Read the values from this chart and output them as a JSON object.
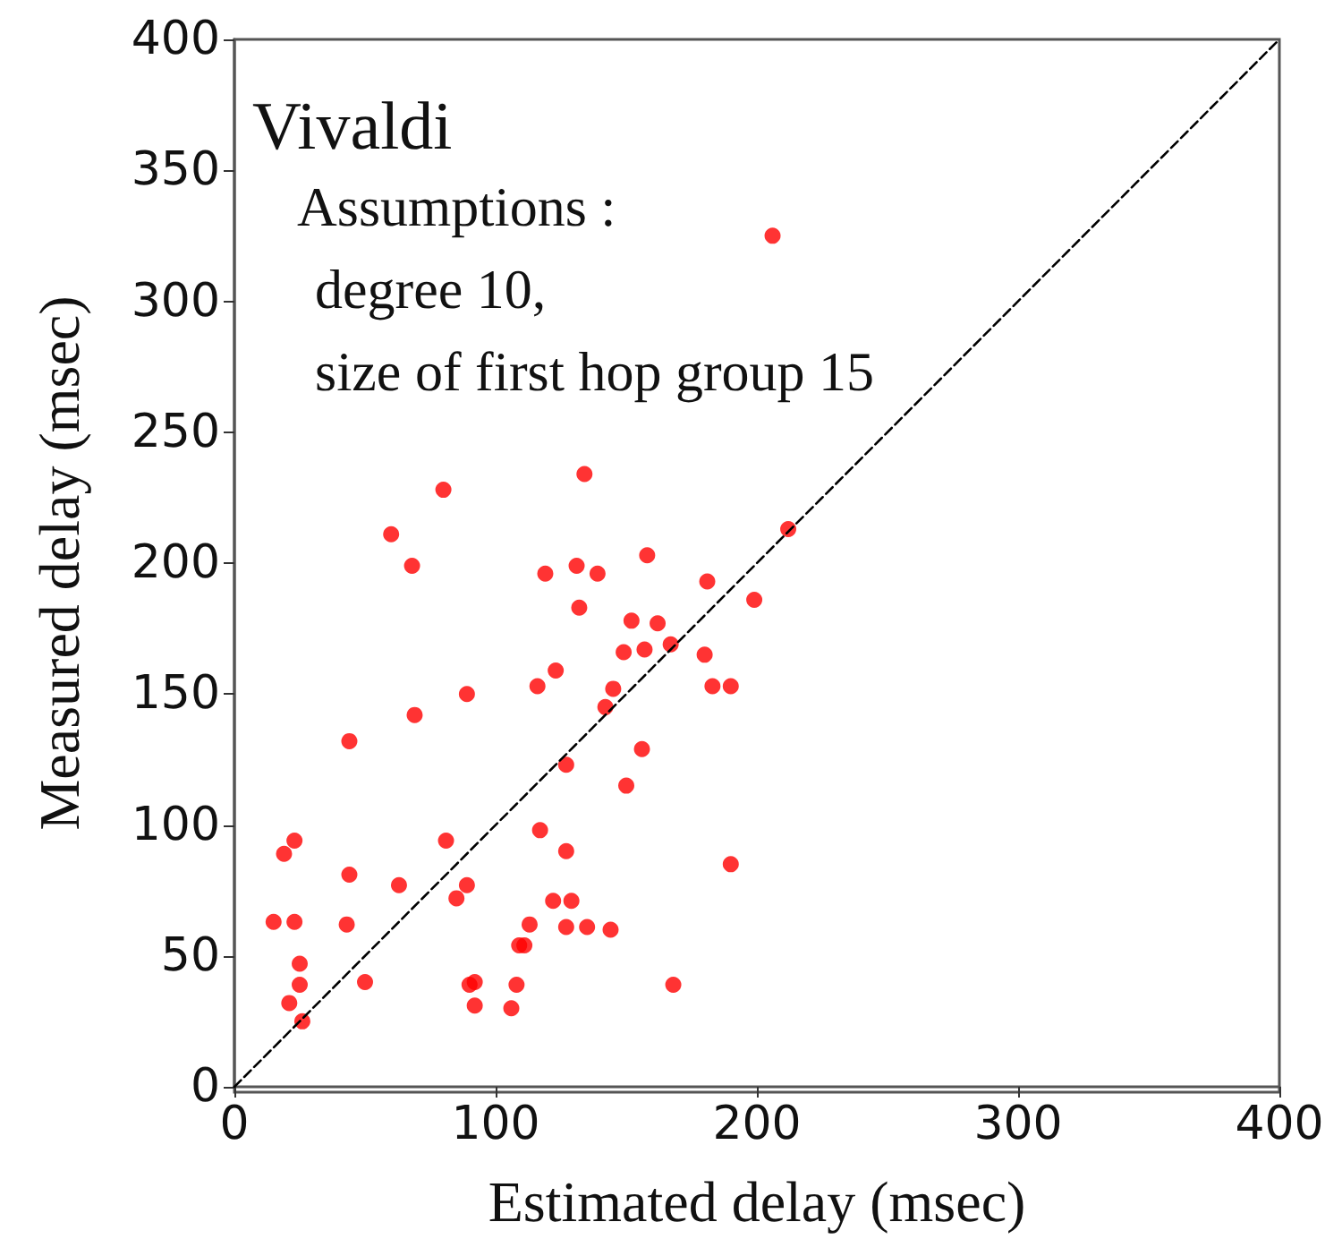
{
  "chart_data": {
    "type": "scatter",
    "title": "Vivaldi",
    "xlabel": "Estimated delay (msec)",
    "ylabel": "Measured delay (msec)",
    "annotations": [
      "Assumptions :",
      "degree 10,",
      "size of first hop group 15"
    ],
    "xlim": [
      0,
      400
    ],
    "ylim": [
      0,
      400
    ],
    "xticks": [
      0,
      100,
      200,
      300,
      400
    ],
    "yticks": [
      0,
      50,
      100,
      150,
      200,
      250,
      300,
      350,
      400
    ],
    "grid": false,
    "marker": "circle",
    "series": [
      {
        "color": "#ff0000",
        "x": [
          80,
          60,
          68,
          131,
          119,
          134,
          132,
          123,
          116,
          89,
          69,
          44,
          127,
          117,
          81,
          23,
          19,
          127,
          44,
          63,
          89,
          85,
          122,
          129,
          15,
          23,
          43,
          113,
          127,
          135,
          109,
          111,
          25,
          25,
          50,
          90,
          92,
          108,
          21,
          92,
          106,
          26,
          212,
          158,
          139,
          181,
          199,
          152,
          162,
          149,
          157,
          167,
          180,
          142,
          145,
          183,
          190,
          156,
          150,
          190,
          144,
          168,
          206
        ],
        "values": [
          228,
          211,
          199,
          199,
          196,
          234,
          183,
          159,
          153,
          150,
          142,
          132,
          123,
          98,
          94,
          94,
          89,
          90,
          81,
          77,
          77,
          72,
          71,
          71,
          63,
          63,
          62,
          62,
          61,
          61,
          54,
          54,
          47,
          39,
          40,
          39,
          40,
          39,
          32,
          31,
          30,
          25,
          213,
          203,
          196,
          193,
          186,
          178,
          177,
          166,
          167,
          169,
          165,
          145,
          152,
          153,
          153,
          129,
          115,
          85,
          60,
          39,
          325
        ]
      },
      {
        "type": "line",
        "color": "#000000",
        "line_style": "dashed",
        "marker": "none",
        "x": [
          0,
          400
        ],
        "values": [
          0,
          400
        ]
      }
    ]
  }
}
